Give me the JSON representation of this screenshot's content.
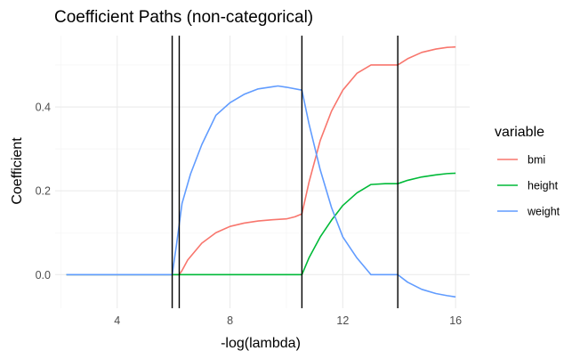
{
  "chart_data": {
    "type": "line",
    "title": "Coefficient Paths (non-categorical)",
    "xlabel": "-log(lambda)",
    "ylabel": "Coefficient",
    "xlim": [
      1.8,
      16.5
    ],
    "ylim": [
      -0.08,
      0.57
    ],
    "x_ticks": [
      4,
      8,
      12,
      16
    ],
    "x_tick_labels": [
      "4",
      "8",
      "12",
      "16"
    ],
    "y_ticks": [
      0.0,
      0.2,
      0.4
    ],
    "y_tick_labels": [
      "0.0",
      "0.2",
      "0.4"
    ],
    "grid": true,
    "legend_position": "right",
    "legend_title": "variable",
    "vlines": [
      5.95,
      6.2,
      10.55,
      13.95
    ],
    "series": [
      {
        "name": "bmi",
        "color": "#F8766D",
        "points": [
          [
            2.2,
            0
          ],
          [
            6.0,
            0
          ],
          [
            6.2,
            0
          ],
          [
            6.3,
            0.01
          ],
          [
            6.5,
            0.035
          ],
          [
            7.0,
            0.075
          ],
          [
            7.5,
            0.1
          ],
          [
            8.0,
            0.115
          ],
          [
            8.5,
            0.123
          ],
          [
            9.0,
            0.128
          ],
          [
            9.5,
            0.131
          ],
          [
            10.0,
            0.133
          ],
          [
            10.3,
            0.138
          ],
          [
            10.55,
            0.145
          ],
          [
            10.8,
            0.22
          ],
          [
            11.2,
            0.32
          ],
          [
            11.6,
            0.39
          ],
          [
            12.0,
            0.44
          ],
          [
            12.5,
            0.48
          ],
          [
            13.0,
            0.5
          ],
          [
            13.5,
            0.5
          ],
          [
            13.95,
            0.5
          ],
          [
            14.3,
            0.515
          ],
          [
            14.8,
            0.53
          ],
          [
            15.3,
            0.538
          ],
          [
            15.7,
            0.542
          ],
          [
            16.0,
            0.543
          ]
        ]
      },
      {
        "name": "height",
        "color": "#00BA38",
        "points": [
          [
            2.2,
            0
          ],
          [
            10.55,
            0
          ],
          [
            10.8,
            0.04
          ],
          [
            11.2,
            0.09
          ],
          [
            11.6,
            0.13
          ],
          [
            12.0,
            0.165
          ],
          [
            12.5,
            0.195
          ],
          [
            13.0,
            0.215
          ],
          [
            13.5,
            0.217
          ],
          [
            13.95,
            0.217
          ],
          [
            14.3,
            0.225
          ],
          [
            14.8,
            0.233
          ],
          [
            15.3,
            0.238
          ],
          [
            15.7,
            0.241
          ],
          [
            16.0,
            0.242
          ]
        ]
      },
      {
        "name": "weight",
        "color": "#619CFF",
        "points": [
          [
            2.2,
            0
          ],
          [
            5.95,
            0
          ],
          [
            6.1,
            0.07
          ],
          [
            6.3,
            0.17
          ],
          [
            6.6,
            0.24
          ],
          [
            7.0,
            0.31
          ],
          [
            7.5,
            0.38
          ],
          [
            8.0,
            0.41
          ],
          [
            8.5,
            0.43
          ],
          [
            9.0,
            0.443
          ],
          [
            9.5,
            0.448
          ],
          [
            9.7,
            0.45
          ],
          [
            10.0,
            0.447
          ],
          [
            10.55,
            0.44
          ],
          [
            10.8,
            0.36
          ],
          [
            11.2,
            0.25
          ],
          [
            11.6,
            0.16
          ],
          [
            12.0,
            0.09
          ],
          [
            12.5,
            0.04
          ],
          [
            13.0,
            0
          ],
          [
            13.95,
            0
          ],
          [
            14.3,
            -0.018
          ],
          [
            14.8,
            -0.035
          ],
          [
            15.3,
            -0.045
          ],
          [
            15.7,
            -0.05
          ],
          [
            16.0,
            -0.053
          ]
        ]
      }
    ]
  }
}
